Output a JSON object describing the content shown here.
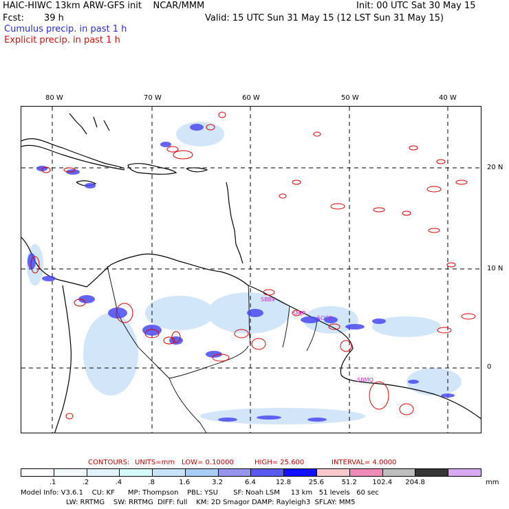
{
  "header": {
    "title_left": "HAIC-HIWC 13km ARW-GFS init    NCAR/MMM",
    "init": "Init: 00 UTC Sat 30 May 15",
    "fcst_label": "Fcst:",
    "fcst_value": "39 h",
    "valid": "Valid: 15 UTC Sun 31 May 15 (12 LST Sun 31 May 15)",
    "cumulus": "Cumulus precip. in past 1 h",
    "explicit": "Explicit precip. in past 1 h"
  },
  "map": {
    "lon_labels": [
      "80 W",
      "70 W",
      "60 W",
      "50 W",
      "40 W"
    ],
    "lat_labels": [
      "20 N",
      "10 N",
      "0"
    ],
    "station_labels": [
      "SBBV",
      "SMJP",
      "SOCA",
      "SBMQ"
    ],
    "colors": {
      "cumulus": "#3a3af0",
      "explicit": "#dd0000",
      "light_shade": "#c8e0f8",
      "grid": "#000000"
    }
  },
  "contour_info": {
    "contours": "CONTOURS:",
    "units": "UNITS=mm",
    "low": "LOW= 0.10000",
    "high": "HIGH= 25.600",
    "interval": "INTERVAL= 4.0000"
  },
  "colorbar": {
    "colors": [
      "#ffffff",
      "#f4f8ff",
      "#e2f2ff",
      "#d4fafa",
      "#c8e2f8",
      "#a8ccf4",
      "#9696ee",
      "#5a5af0",
      "#1010ff",
      "#f8c8cc",
      "#f08ab8",
      "#bebebe",
      "#363636",
      "#d8a8f0"
    ],
    "ticks": [
      ".1",
      ".2",
      ".4",
      ".8",
      "1.6",
      "3.2",
      "6.4",
      "12.8",
      "25.6",
      "51.2",
      "102.4",
      "204.8"
    ],
    "unit": "mm"
  },
  "model_info": {
    "line1": "Model Info: V3.6.1    CU: KF      MP: Thompson    PBL: YSU       SF: Noah LSM     13 km   51 levels   60 sec",
    "line2": "LW: RRTMG    SW: RRTMG  DIFF: full    KM: 2D Smagor DAMP: Rayleigh3  SFLAY: MM5"
  }
}
